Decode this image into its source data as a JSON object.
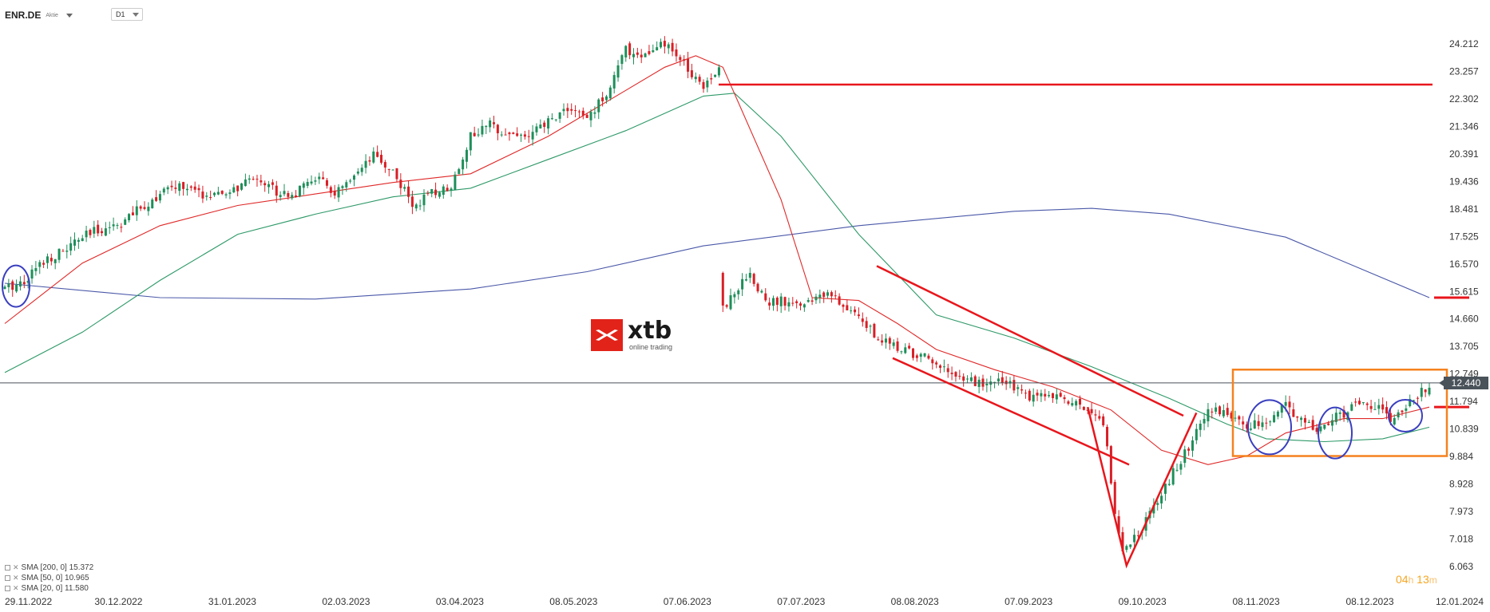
{
  "toolbar": {
    "symbol": "ENR.DE",
    "symbol_type": "Aktie",
    "timeframe": "D1"
  },
  "logo": {
    "name": "xtb",
    "subtitle": "online trading"
  },
  "countdown": {
    "hours": "04",
    "h_unit": "h",
    "minutes": "13",
    "m_unit": "m"
  },
  "legend": [
    {
      "label": "SMA [200, 0] 15.372"
    },
    {
      "label": "SMA [50, 0] 10.965"
    },
    {
      "label": "SMA [20, 0] 11.580"
    }
  ],
  "current_price": "12.440",
  "colors": {
    "bull": "#1e8f5a",
    "bear": "#d81f26",
    "sma200": "#4a58a8",
    "sma50": "#2e9968",
    "sma20": "#e02828",
    "annotation": "#e8161c",
    "box": "#f5821f",
    "circle": "#3a3fbf",
    "price_line": "#4a525a"
  },
  "chart_data": {
    "type": "candlestick",
    "y_ticks": [
      "24.212",
      "23.257",
      "22.302",
      "21.346",
      "20.391",
      "19.436",
      "18.481",
      "17.525",
      "16.570",
      "15.615",
      "14.660",
      "13.705",
      "12.749",
      "11.794",
      "10.839",
      "9.884",
      "8.928",
      "7.973",
      "7.018",
      "6.063"
    ],
    "y_tick_values": [
      24.212,
      23.257,
      22.302,
      21.346,
      20.391,
      19.436,
      18.481,
      17.525,
      16.57,
      15.615,
      14.66,
      13.705,
      12.749,
      11.794,
      10.839,
      9.884,
      8.928,
      7.973,
      7.018,
      6.063
    ],
    "x_ticks": [
      "29.11.2022",
      "30.12.2022",
      "31.01.2023",
      "02.03.2023",
      "03.04.2023",
      "08.05.2023",
      "07.06.2023",
      "07.07.2023",
      "08.08.2023",
      "07.09.2023",
      "09.10.2023",
      "08.11.2023",
      "08.12.2023",
      "12.01.2024"
    ],
    "close_anchors": [
      [
        0,
        15.7
      ],
      [
        5,
        16.0
      ],
      [
        10,
        16.7
      ],
      [
        15,
        17.0
      ],
      [
        20,
        17.5
      ],
      [
        25,
        17.8
      ],
      [
        30,
        18.0
      ],
      [
        35,
        18.5
      ],
      [
        40,
        19.0
      ],
      [
        45,
        19.3
      ],
      [
        50,
        19.0
      ],
      [
        55,
        18.9
      ],
      [
        60,
        19.2
      ],
      [
        65,
        19.6
      ],
      [
        70,
        19.1
      ],
      [
        75,
        19.0
      ],
      [
        80,
        19.6
      ],
      [
        85,
        19.0
      ],
      [
        90,
        19.5
      ],
      [
        95,
        20.3
      ],
      [
        100,
        19.8
      ],
      [
        105,
        18.6
      ],
      [
        110,
        19.0
      ],
      [
        115,
        19.3
      ],
      [
        120,
        21.0
      ],
      [
        125,
        21.4
      ],
      [
        130,
        21.1
      ],
      [
        135,
        21.0
      ],
      [
        140,
        21.5
      ],
      [
        145,
        22.0
      ],
      [
        150,
        21.6
      ],
      [
        155,
        22.5
      ],
      [
        160,
        24.0
      ],
      [
        165,
        23.8
      ],
      [
        170,
        24.2
      ],
      [
        175,
        23.5
      ],
      [
        180,
        22.8
      ],
      [
        184,
        23.4
      ],
      [
        185,
        15.0
      ],
      [
        188,
        15.6
      ],
      [
        192,
        16.3
      ],
      [
        196,
        15.2
      ],
      [
        200,
        15.3
      ],
      [
        205,
        15.2
      ],
      [
        210,
        15.5
      ],
      [
        215,
        15.3
      ],
      [
        220,
        14.8
      ],
      [
        225,
        14.0
      ],
      [
        230,
        13.7
      ],
      [
        235,
        13.4
      ],
      [
        240,
        13.2
      ],
      [
        245,
        12.8
      ],
      [
        250,
        12.4
      ],
      [
        255,
        12.5
      ],
      [
        260,
        12.3
      ],
      [
        265,
        11.9
      ],
      [
        270,
        12.0
      ],
      [
        275,
        11.7
      ],
      [
        280,
        11.5
      ],
      [
        283,
        11.1
      ],
      [
        286,
        8.0
      ],
      [
        288,
        6.5
      ],
      [
        290,
        7.0
      ],
      [
        293,
        7.4
      ],
      [
        296,
        8.2
      ],
      [
        300,
        9.1
      ],
      [
        305,
        10.2
      ],
      [
        310,
        11.4
      ],
      [
        313,
        11.5
      ],
      [
        316,
        11.2
      ],
      [
        320,
        10.9
      ],
      [
        325,
        11.1
      ],
      [
        330,
        11.6
      ],
      [
        334,
        11.2
      ],
      [
        338,
        10.7
      ],
      [
        342,
        11.3
      ],
      [
        346,
        11.4
      ],
      [
        350,
        11.9
      ],
      [
        354,
        11.5
      ],
      [
        357,
        11.2
      ],
      [
        360,
        11.5
      ],
      [
        364,
        12.0
      ],
      [
        367,
        12.4
      ]
    ],
    "series": [
      {
        "name": "SMA [200, 0] 15.372",
        "points": [
          [
            0,
            15.9
          ],
          [
            40,
            15.4
          ],
          [
            80,
            15.35
          ],
          [
            120,
            15.7
          ],
          [
            150,
            16.3
          ],
          [
            180,
            17.2
          ],
          [
            220,
            17.9
          ],
          [
            260,
            18.4
          ],
          [
            280,
            18.5
          ],
          [
            300,
            18.3
          ],
          [
            330,
            17.5
          ],
          [
            367,
            15.4
          ]
        ]
      },
      {
        "name": "SMA [50, 0] 10.965",
        "points": [
          [
            0,
            12.8
          ],
          [
            20,
            14.2
          ],
          [
            40,
            16.0
          ],
          [
            60,
            17.6
          ],
          [
            80,
            18.3
          ],
          [
            100,
            18.9
          ],
          [
            120,
            19.2
          ],
          [
            140,
            20.2
          ],
          [
            160,
            21.2
          ],
          [
            180,
            22.4
          ],
          [
            188,
            22.5
          ],
          [
            200,
            21.0
          ],
          [
            220,
            17.6
          ],
          [
            240,
            14.8
          ],
          [
            260,
            14.0
          ],
          [
            280,
            13.0
          ],
          [
            300,
            11.9
          ],
          [
            315,
            11.0
          ],
          [
            325,
            10.5
          ],
          [
            340,
            10.4
          ],
          [
            355,
            10.5
          ],
          [
            367,
            10.9
          ]
        ]
      },
      {
        "name": "SMA [20, 0] 11.580",
        "points": [
          [
            0,
            14.5
          ],
          [
            20,
            16.6
          ],
          [
            40,
            17.9
          ],
          [
            60,
            18.6
          ],
          [
            80,
            19.0
          ],
          [
            100,
            19.4
          ],
          [
            120,
            19.7
          ],
          [
            140,
            21.0
          ],
          [
            160,
            22.6
          ],
          [
            170,
            23.4
          ],
          [
            178,
            23.8
          ],
          [
            185,
            23.4
          ],
          [
            200,
            18.8
          ],
          [
            208,
            15.4
          ],
          [
            220,
            15.3
          ],
          [
            230,
            14.5
          ],
          [
            240,
            13.6
          ],
          [
            255,
            12.9
          ],
          [
            270,
            12.3
          ],
          [
            285,
            11.5
          ],
          [
            298,
            10.1
          ],
          [
            310,
            9.6
          ],
          [
            320,
            9.9
          ],
          [
            330,
            10.7
          ],
          [
            345,
            11.2
          ],
          [
            355,
            11.2
          ],
          [
            367,
            11.6
          ]
        ]
      }
    ]
  }
}
